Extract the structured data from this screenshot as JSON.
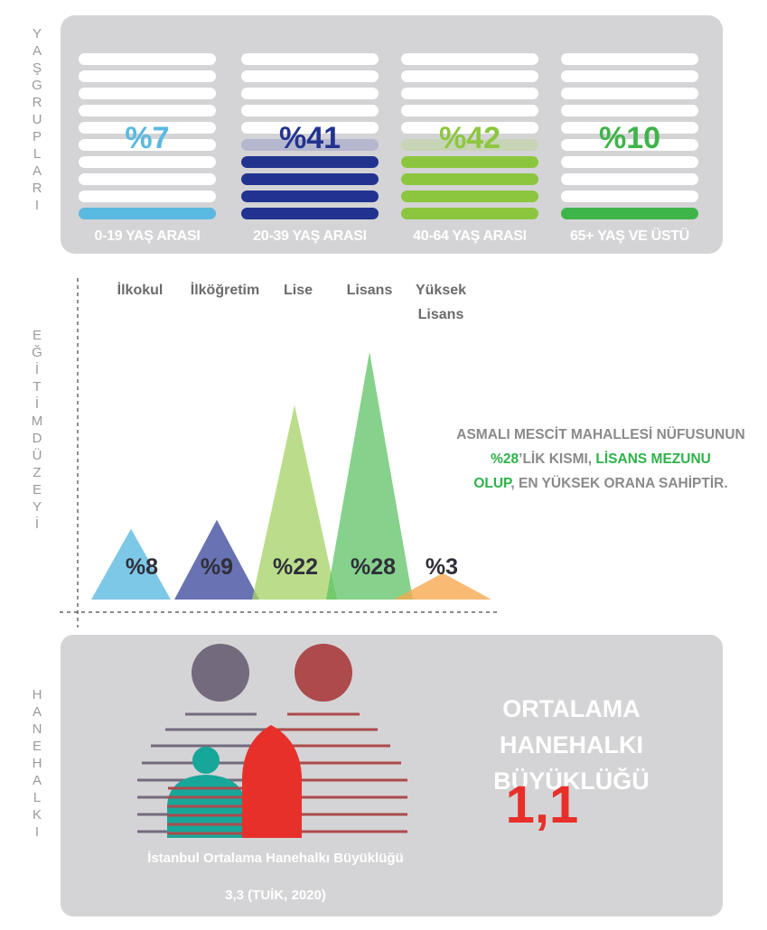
{
  "sections": {
    "age_label": "YAŞ GRUPLARI",
    "education_label": "EĞİTİM DÜZEYİ",
    "household_label": "HANEHALKI"
  },
  "age_groups": [
    {
      "label": "0-19 YAŞ ARASI",
      "percent": "%7",
      "color": "#5ab9e0"
    },
    {
      "label": "20-39 YAŞ ARASI",
      "percent": "%41",
      "color": "#22338f"
    },
    {
      "label": "40-64 YAŞ ARASI",
      "percent": "%42",
      "color": "#8cc63f"
    },
    {
      "label": "65+ YAŞ VE ÜSTÜ",
      "percent": "%10",
      "color": "#3fb449"
    }
  ],
  "education": {
    "levels": [
      {
        "name": "İlkokul",
        "percent": "%8",
        "value": 8,
        "color": "#5ab9e0"
      },
      {
        "name": "İlköğretim",
        "percent": "%9",
        "value": 9,
        "color": "#3f4a9c"
      },
      {
        "name": "Lise",
        "percent": "%22",
        "value": 22,
        "color": "#a8d46a"
      },
      {
        "name": "Lisans",
        "percent": "%28",
        "value": 28,
        "color": "#57c060"
      },
      {
        "name": "Yüksek Lisans",
        "percent": "%3",
        "value": 3,
        "color": "#f7a84c"
      }
    ],
    "note_line1": "ASMALI MESCİT MAHALLESİ NÜFUSUNUN",
    "note_pct": "%28",
    "note_mid": "’LİK KISMI, ",
    "note_highlight1": "LİSANS MEZUNU",
    "note_highlight2": "OLUP",
    "note_end": ", EN YÜKSEK ORANA SAHİPTİR."
  },
  "household": {
    "title_line1": "ORTALAMA HANEHALKI",
    "title_line2": "BÜYÜKLÜĞÜ",
    "value": "1,1",
    "istanbul_caption": "İstanbul Ortalama Hanehalkı Büyüklüğü",
    "istanbul_value": "3,3 (TUİK, 2020)"
  }
}
